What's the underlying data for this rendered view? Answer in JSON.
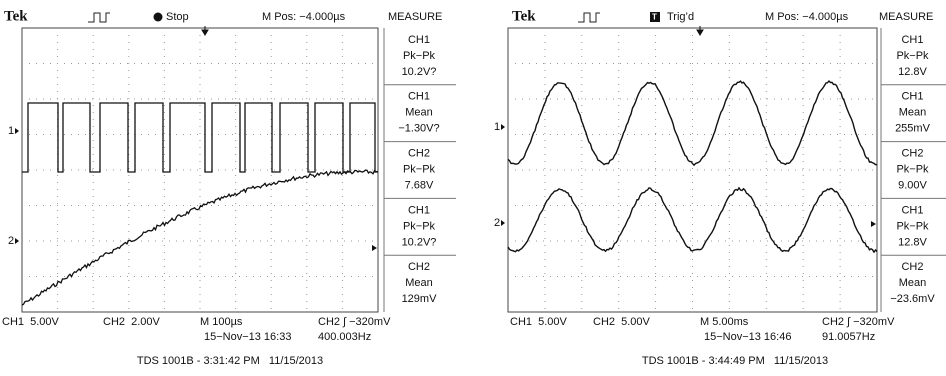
{
  "scopes": [
    {
      "header": {
        "brand": "Tek",
        "state": "Stop",
        "position": "M Pos: −4.000µs",
        "measure_title": "MEASURE"
      },
      "channel_markers": [
        "1",
        "2"
      ],
      "measurements": [
        {
          "channel": "CH1",
          "type": "Pk−Pk",
          "value": "10.2V?"
        },
        {
          "channel": "CH1",
          "type": "Mean",
          "value": "−1.30V?"
        },
        {
          "channel": "CH2",
          "type": "Pk−Pk",
          "value": "7.68V"
        },
        {
          "channel": "CH1",
          "type": "Pk−Pk",
          "value": "10.2V?"
        },
        {
          "channel": "CH2",
          "type": "Mean",
          "value": "129mV"
        }
      ],
      "footer": {
        "ch1_scale": "CH1  5.00V",
        "ch2_scale": "CH2  2.00V",
        "timebase": "M 100µs",
        "trigger": "CH2 ∫ −320mV",
        "datetime": "15−Nov−13 16:33",
        "frequency": "400.003Hz"
      },
      "caption": "TDS 1001B - 3:31:42 PM   11/15/2013"
    },
    {
      "header": {
        "brand": "Tek",
        "state": "Trig’d",
        "position": "M Pos: −4.000µs",
        "measure_title": "MEASURE"
      },
      "channel_markers": [
        "1",
        "2"
      ],
      "measurements": [
        {
          "channel": "CH1",
          "type": "Pk−Pk",
          "value": "12.8V"
        },
        {
          "channel": "CH1",
          "type": "Mean",
          "value": "255mV"
        },
        {
          "channel": "CH2",
          "type": "Pk−Pk",
          "value": "9.00V"
        },
        {
          "channel": "CH1",
          "type": "Pk−Pk",
          "value": "12.8V"
        },
        {
          "channel": "CH2",
          "type": "Mean",
          "value": "−23.6mV"
        }
      ],
      "footer": {
        "ch1_scale": "CH1  5.00V",
        "ch2_scale": "CH2  5.00V",
        "timebase": "M 5.00ms",
        "trigger": "CH2 ∫ −320mV",
        "datetime": "15−Nov−13 16:46",
        "frequency": "91.0057Hz"
      },
      "caption": "TDS 1001B - 3:44:49 PM   11/15/2013"
    }
  ]
}
